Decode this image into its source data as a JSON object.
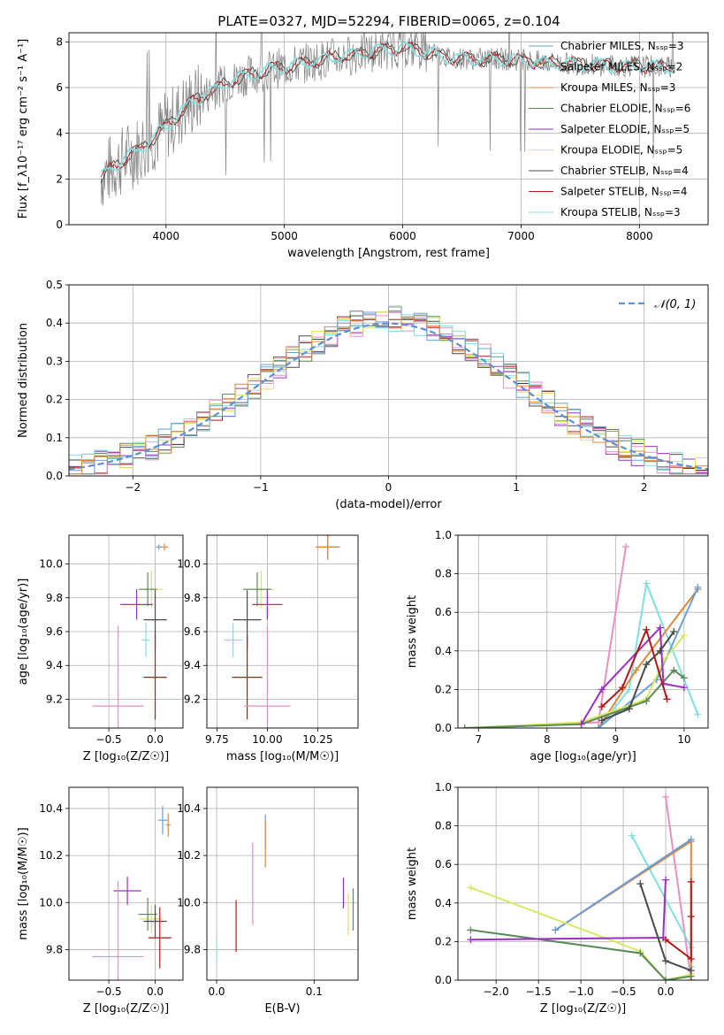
{
  "title": "PLATE=0327, MJD=52294, FIBERID=0065, z=0.104",
  "legend_labels": {
    "spec": [
      "Chabrier MILES, N$_{SSP}$=3",
      "Salpeter MILES, N$_{SSP}$=2",
      "Kroupa MILES, N$_{SSP}$=3",
      "Chabrier ELODIE, N$_{SSP}$=6",
      "Salpeter ELODIE, N$_{SSP}$=5",
      "Kroupa ELODIE, N$_{SSP}$=5",
      "Chabrier STELIB, N$_{SSP}$=4",
      "Salpeter STELIB, N$_{SSP}$=4",
      "Kroupa STELIB, N$_{SSP}$=3"
    ],
    "hist": "𝒩(0, 1)"
  },
  "colors": {
    "models": [
      "#6a9fd8",
      "#e8b04a",
      "#e0883a",
      "#5a8a5a",
      "#9b30c0",
      "#d8e860",
      "#4a4a4a",
      "#b01818",
      "#80e0e0"
    ],
    "data": "#808080",
    "normal": "#5b8fd8",
    "extra": "#e890c0"
  },
  "chart_data": [
    {
      "type": "line",
      "title": "PLATE=0327, MJD=52294, FIBERID=0065, z=0.104",
      "xlabel": "wavelength [Angstrom, rest frame]",
      "ylabel": "Flux [f_λ10⁻¹⁷ erg cm⁻² s⁻¹ A⁻¹]",
      "xlim": [
        3180,
        8580
      ],
      "ylim": [
        0,
        8.4
      ],
      "xticks": [
        "4000",
        "5000",
        "6000",
        "7000",
        "8000"
      ],
      "yticks": [
        "0",
        "2",
        "4",
        "6",
        "8"
      ],
      "continuum": {
        "x": [
          3450,
          3600,
          3800,
          4000,
          4200,
          4400,
          4600,
          4800,
          5000,
          5200,
          5400,
          5600,
          5800,
          6000,
          6200,
          6400,
          6600,
          6800,
          7000,
          7200,
          7400,
          7600,
          7800,
          8000,
          8200
        ],
        "y": [
          2.1,
          2.7,
          3.4,
          4.3,
          5.3,
          5.9,
          6.4,
          6.7,
          6.9,
          7.1,
          7.3,
          7.45,
          7.6,
          7.75,
          7.55,
          7.3,
          7.25,
          7.25,
          7.2,
          7.1,
          7.05,
          7.0,
          6.95,
          6.95,
          6.9
        ]
      },
      "grid": true
    },
    {
      "type": "bar",
      "xlabel": "(data-model)/error",
      "ylabel": "Normed distribution",
      "xlim": [
        -2.5,
        2.5
      ],
      "ylim": [
        0,
        0.5
      ],
      "xticks": [
        "−2",
        "−1",
        "0",
        "1",
        "2"
      ],
      "yticks": [
        "0.0",
        "0.1",
        "0.2",
        "0.3",
        "0.4",
        "0.5"
      ],
      "bin_edges_start": -2.5,
      "bin_width": 0.1,
      "grid": true
    },
    {
      "type": "scatter",
      "xlabel": "Z [log₁₀(Z/Z☉)]",
      "ylabel": "age  [log₁₀(age/yr)]",
      "xlim": [
        -0.93,
        0.3
      ],
      "ylim": [
        9.03,
        10.17
      ],
      "xticks": [
        "−0.5",
        "0.0"
      ],
      "yticks": [
        "9.2",
        "9.4",
        "9.6",
        "9.8",
        "10.0"
      ],
      "points": [
        {
          "c": 5,
          "x": -0.04,
          "y": 9.85,
          "xe": 0.25,
          "ye": 0.22
        },
        {
          "c": 3,
          "x": -0.08,
          "y": 9.85,
          "xe": 0.2,
          "ye": 0.2
        },
        {
          "c": 4,
          "x": -0.2,
          "y": 9.76,
          "xe": 0.35,
          "ye": 0.18
        },
        {
          "c": 6,
          "x": 0.0,
          "y": 9.67,
          "xe": 0.25,
          "ye": 0.35
        },
        {
          "c": 8,
          "x": -0.1,
          "y": 9.55,
          "xe": 0.08,
          "ye": 0.2
        },
        {
          "c": 7,
          "x": 0.0,
          "y": 9.33,
          "xe": 0.25,
          "ye": 0.5
        },
        {
          "c": 9,
          "x": -0.4,
          "y": 9.16,
          "xe": 0.55,
          "ye": 0.95
        },
        {
          "c": 0,
          "x": 0.04,
          "y": 10.1,
          "xe": 0.06,
          "ye": 0.03
        },
        {
          "c": 2,
          "x": 0.1,
          "y": 10.1,
          "xe": 0.08,
          "ye": 0.04
        }
      ]
    },
    {
      "type": "scatter",
      "xlabel": "mass [log₁₀(M/M☉)]",
      "ylabel": "",
      "xlim": [
        9.7,
        10.45
      ],
      "ylim": [
        9.03,
        10.17
      ],
      "xticks": [
        "9.75",
        "10.00",
        "10.25"
      ],
      "yticks": [
        "9.2",
        "9.4",
        "9.6",
        "9.8",
        "10.0"
      ],
      "points": [
        {
          "c": 5,
          "x": 9.97,
          "y": 9.85,
          "xe": 0.12,
          "ye": 0.22
        },
        {
          "c": 3,
          "x": 9.95,
          "y": 9.85,
          "xe": 0.14,
          "ye": 0.2
        },
        {
          "c": 4,
          "x": 10.0,
          "y": 9.76,
          "xe": 0.15,
          "ye": 0.18
        },
        {
          "c": 6,
          "x": 9.9,
          "y": 9.67,
          "xe": 0.14,
          "ye": 0.35
        },
        {
          "c": 8,
          "x": 9.83,
          "y": 9.55,
          "xe": 0.09,
          "ye": 0.2
        },
        {
          "c": 7,
          "x": 9.9,
          "y": 9.33,
          "xe": 0.15,
          "ye": 0.5
        },
        {
          "c": 9,
          "x": 10.0,
          "y": 9.16,
          "xe": 0.23,
          "ye": 0.95
        },
        {
          "c": 0,
          "x": 10.3,
          "y": 10.1,
          "xe": 0.12,
          "ye": 0.15
        },
        {
          "c": 2,
          "x": 10.3,
          "y": 10.1,
          "xe": 0.1,
          "ye": 0.15
        }
      ]
    },
    {
      "type": "line",
      "xlabel": "age  [log₁₀(age/yr)]",
      "ylabel": "mass weight",
      "xlim": [
        6.7,
        10.35
      ],
      "ylim": [
        0,
        1.0
      ],
      "xticks": [
        "7",
        "8",
        "9",
        "10"
      ],
      "yticks": [
        "0.0",
        "0.2",
        "0.4",
        "0.6",
        "0.8",
        "1.0"
      ],
      "series": [
        {
          "c": 9,
          "x": [
            6.8,
            8.75,
            9.15
          ],
          "y": [
            0.0,
            0.03,
            0.94
          ]
        },
        {
          "c": 8,
          "x": [
            8.75,
            9.2,
            9.45,
            10.2
          ],
          "y": [
            0.0,
            0.2,
            0.75,
            0.07
          ]
        },
        {
          "c": 2,
          "x": [
            8.75,
            9.3,
            10.2
          ],
          "y": [
            0.0,
            0.3,
            0.72
          ]
        },
        {
          "c": 0,
          "x": [
            8.75,
            9.6,
            10.2
          ],
          "y": [
            0.0,
            0.25,
            0.73
          ]
        },
        {
          "c": 5,
          "x": [
            6.8,
            8.5,
            9.45,
            9.7,
            10.0
          ],
          "y": [
            0.0,
            0.03,
            0.15,
            0.35,
            0.48
          ]
        },
        {
          "c": 3,
          "x": [
            6.8,
            8.5,
            9.45,
            9.85,
            10.0
          ],
          "y": [
            0.0,
            0.02,
            0.14,
            0.3,
            0.26
          ]
        },
        {
          "c": 4,
          "x": [
            8.5,
            8.8,
            9.65,
            9.7,
            10.0
          ],
          "y": [
            0.02,
            0.2,
            0.52,
            0.23,
            0.21
          ]
        },
        {
          "c": 6,
          "x": [
            8.8,
            9.2,
            9.45,
            9.65,
            9.85
          ],
          "y": [
            0.04,
            0.1,
            0.33,
            0.4,
            0.5
          ]
        },
        {
          "c": 7,
          "x": [
            8.8,
            9.1,
            9.45,
            9.75
          ],
          "y": [
            0.11,
            0.21,
            0.51,
            0.15
          ]
        }
      ]
    },
    {
      "type": "scatter",
      "xlabel": "Z [log₁₀(Z/Z☉)]",
      "ylabel": "mass [log₁₀(M/M☉)]",
      "xlim": [
        -0.93,
        0.3
      ],
      "ylim": [
        9.67,
        10.49
      ],
      "xticks": [
        "−0.5",
        "0.0"
      ],
      "yticks": [
        "9.8",
        "10.0",
        "10.2",
        "10.4"
      ],
      "points": [
        {
          "c": 5,
          "x": -0.04,
          "y": 9.93,
          "xe": 0.25,
          "ye": 0.12
        },
        {
          "c": 3,
          "x": -0.08,
          "y": 9.95,
          "xe": 0.2,
          "ye": 0.14
        },
        {
          "c": 4,
          "x": -0.3,
          "y": 10.05,
          "xe": 0.3,
          "ye": 0.12
        },
        {
          "c": 6,
          "x": 0.0,
          "y": 9.92,
          "xe": 0.25,
          "ye": 0.14
        },
        {
          "c": 7,
          "x": 0.05,
          "y": 9.85,
          "xe": 0.25,
          "ye": 0.26
        },
        {
          "c": 9,
          "x": -0.4,
          "y": 9.77,
          "xe": 0.55,
          "ye": 0.64
        },
        {
          "c": 0,
          "x": 0.08,
          "y": 10.35,
          "xe": 0.1,
          "ye": 0.12
        },
        {
          "c": 2,
          "x": 0.14,
          "y": 10.33,
          "xe": 0.05,
          "ye": 0.1
        }
      ]
    },
    {
      "type": "scatter",
      "xlabel": "E(B-V)",
      "ylabel": "",
      "xlim": [
        -0.01,
        0.145
      ],
      "ylim": [
        9.67,
        10.49
      ],
      "xticks": [
        "0.0",
        "0.1"
      ],
      "yticks": [
        "9.8",
        "10.0",
        "10.2",
        "10.4"
      ],
      "points": [
        {
          "c": 8,
          "x": 0.0,
          "y": 9.8,
          "ye": 0.08
        },
        {
          "c": 7,
          "x": 0.02,
          "y": 9.9,
          "ye": 0.22
        },
        {
          "c": 9,
          "x": 0.037,
          "y": 10.08,
          "ye": 0.35
        },
        {
          "c": 0,
          "x": 0.05,
          "y": 10.3,
          "ye": 0.15
        },
        {
          "c": 2,
          "x": 0.05,
          "y": 10.25,
          "ye": 0.2
        },
        {
          "c": 4,
          "x": 0.13,
          "y": 10.04,
          "ye": 0.13
        },
        {
          "c": 5,
          "x": 0.135,
          "y": 9.95,
          "ye": 0.18
        },
        {
          "c": 3,
          "x": 0.14,
          "y": 9.97,
          "ye": 0.18
        }
      ]
    },
    {
      "type": "line",
      "xlabel": "Z [log₁₀(Z/Z☉)]",
      "ylabel": "mass weight",
      "xlim": [
        -2.45,
        0.5
      ],
      "ylim": [
        0,
        1.0
      ],
      "xticks": [
        "−2.0",
        "−1.5",
        "−1.0",
        "−0.5",
        "0.0"
      ],
      "yticks": [
        "0.0",
        "0.2",
        "0.4",
        "0.6",
        "0.8",
        "1.0"
      ],
      "series": [
        {
          "c": 9,
          "x": [
            0.0,
            0.3
          ],
          "y": [
            0.95,
            0.0
          ]
        },
        {
          "c": 8,
          "x": [
            -0.4,
            0.3,
            0.3
          ],
          "y": [
            0.75,
            0.17,
            0.07
          ]
        },
        {
          "c": 2,
          "x": [
            -1.3,
            0.3,
            0.3
          ],
          "y": [
            0.26,
            0.72,
            0.0
          ]
        },
        {
          "c": 0,
          "x": [
            -1.3,
            0.3
          ],
          "y": [
            0.26,
            0.73
          ]
        },
        {
          "c": 5,
          "x": [
            -2.3,
            -0.3,
            0.0,
            0.3
          ],
          "y": [
            0.48,
            0.15,
            0.0,
            0.03
          ]
        },
        {
          "c": 3,
          "x": [
            -2.3,
            -0.3,
            0.0,
            0.3
          ],
          "y": [
            0.26,
            0.14,
            0.0,
            0.02
          ]
        },
        {
          "c": 4,
          "x": [
            -2.3,
            -0.03,
            0.0
          ],
          "y": [
            0.21,
            0.22,
            0.52
          ]
        },
        {
          "c": 6,
          "x": [
            -0.3,
            0.0,
            0.3
          ],
          "y": [
            0.5,
            0.1,
            0.05
          ]
        },
        {
          "c": 7,
          "x": [
            0.0,
            0.3,
            0.3,
            0.3
          ],
          "y": [
            0.21,
            0.11,
            0.51,
            0.33
          ]
        }
      ]
    }
  ]
}
